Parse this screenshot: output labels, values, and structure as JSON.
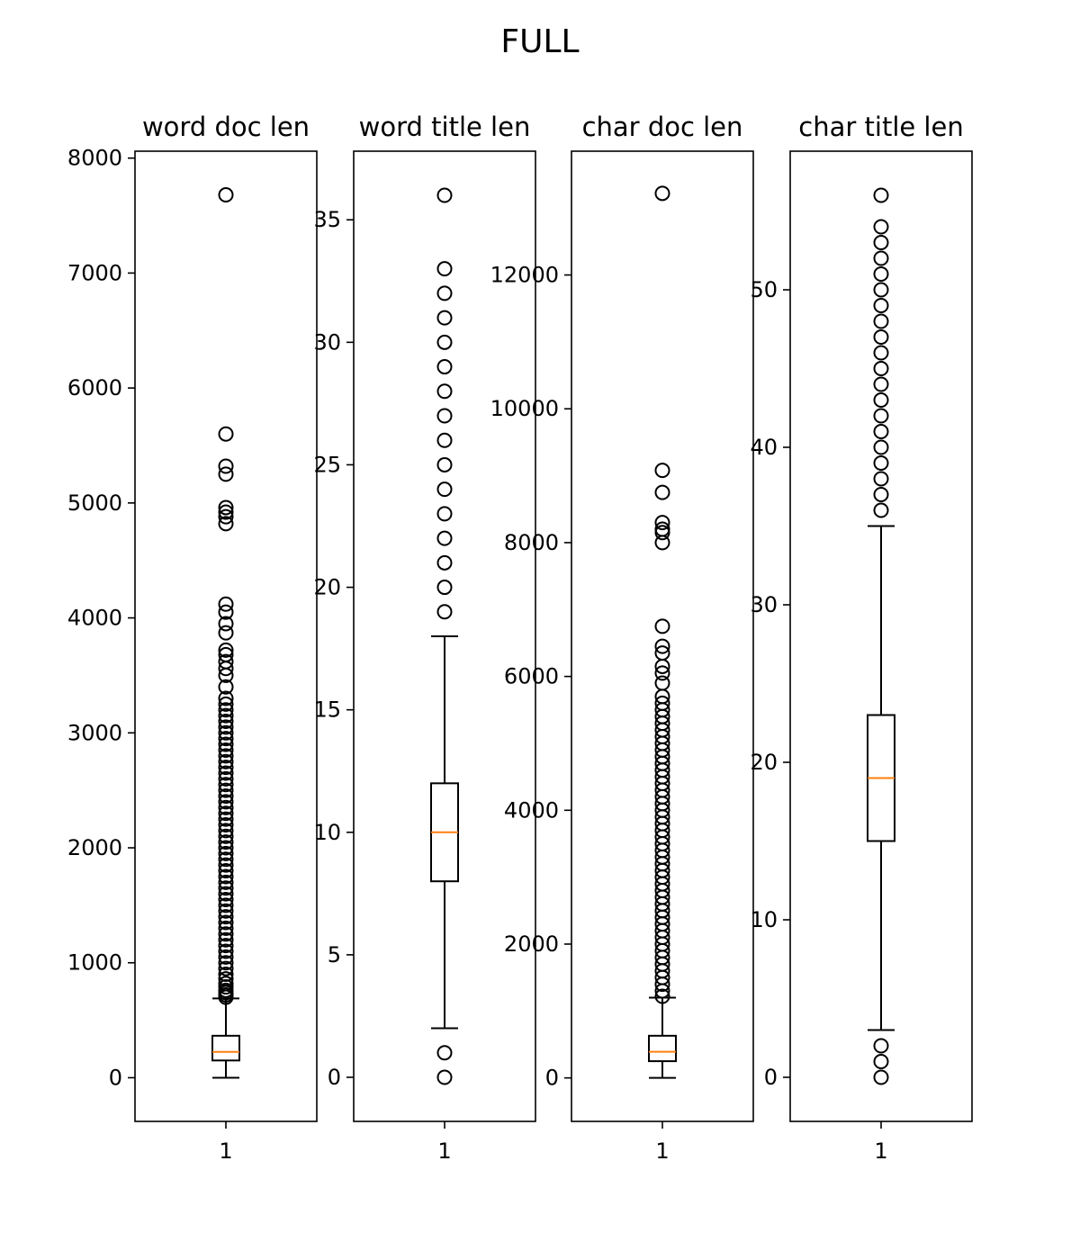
{
  "figure": {
    "title": "FULL"
  },
  "chart_data": [
    {
      "type": "box",
      "title": "word doc len",
      "categories": [
        "1"
      ],
      "ylim": [
        -380,
        8060
      ],
      "yticks": [
        0,
        1000,
        2000,
        3000,
        4000,
        5000,
        6000,
        7000,
        8000
      ],
      "box": {
        "whisker_low": 0,
        "q1": 150,
        "median": 225,
        "q3": 365,
        "whisker_high": 690
      },
      "fliers": [
        700,
        720,
        740,
        760,
        790,
        820,
        860,
        900,
        950,
        1000,
        1050,
        1100,
        1150,
        1200,
        1250,
        1300,
        1350,
        1400,
        1450,
        1500,
        1550,
        1600,
        1650,
        1700,
        1750,
        1800,
        1850,
        1900,
        1950,
        2000,
        2050,
        2100,
        2150,
        2200,
        2250,
        2300,
        2350,
        2400,
        2450,
        2500,
        2550,
        2600,
        2650,
        2700,
        2750,
        2800,
        2850,
        2900,
        2950,
        3000,
        3050,
        3100,
        3150,
        3200,
        3250,
        3300,
        3400,
        3500,
        3560,
        3620,
        3680,
        3720,
        3870,
        3950,
        4050,
        4120,
        4820,
        4880,
        4920,
        4960,
        5250,
        5320,
        5600,
        7680
      ]
    },
    {
      "type": "box",
      "title": "word title len",
      "categories": [
        "1"
      ],
      "ylim": [
        -1.8,
        37.8
      ],
      "yticks": [
        0,
        5,
        10,
        15,
        20,
        25,
        30,
        35
      ],
      "box": {
        "whisker_low": 2,
        "q1": 8,
        "median": 10,
        "q3": 12,
        "whisker_high": 18
      },
      "fliers": [
        0,
        1,
        19,
        20,
        21,
        22,
        23,
        24,
        25,
        26,
        27,
        28,
        29,
        30,
        31,
        32,
        33,
        36
      ]
    },
    {
      "type": "box",
      "title": "char doc len",
      "categories": [
        "1"
      ],
      "ylim": [
        -650,
        13850
      ],
      "yticks": [
        0,
        2000,
        4000,
        6000,
        8000,
        10000,
        12000
      ],
      "box": {
        "whisker_low": 0,
        "q1": 250,
        "median": 390,
        "q3": 630,
        "whisker_high": 1200
      },
      "fliers": [
        1220,
        1300,
        1400,
        1500,
        1600,
        1700,
        1800,
        1900,
        2000,
        2100,
        2200,
        2300,
        2400,
        2500,
        2600,
        2700,
        2800,
        2900,
        3000,
        3100,
        3200,
        3300,
        3400,
        3500,
        3600,
        3700,
        3800,
        3900,
        4000,
        4100,
        4200,
        4300,
        4400,
        4500,
        4600,
        4700,
        4800,
        4900,
        5000,
        5100,
        5200,
        5300,
        5400,
        5500,
        5600,
        5700,
        5900,
        6050,
        6150,
        6350,
        6450,
        6750,
        8000,
        8150,
        8200,
        8300,
        8750,
        9080,
        13220
      ]
    },
    {
      "type": "box",
      "title": "char title len",
      "categories": [
        "1"
      ],
      "ylim": [
        -2.8,
        58.8
      ],
      "yticks": [
        0,
        10,
        20,
        30,
        40,
        50
      ],
      "box": {
        "whisker_low": 3,
        "q1": 15,
        "median": 19,
        "q3": 23,
        "whisker_high": 35
      },
      "fliers": [
        0,
        1,
        2,
        36,
        37,
        38,
        39,
        40,
        41,
        42,
        43,
        44,
        45,
        46,
        47,
        48,
        49,
        50,
        51,
        52,
        53,
        54,
        56
      ]
    }
  ]
}
